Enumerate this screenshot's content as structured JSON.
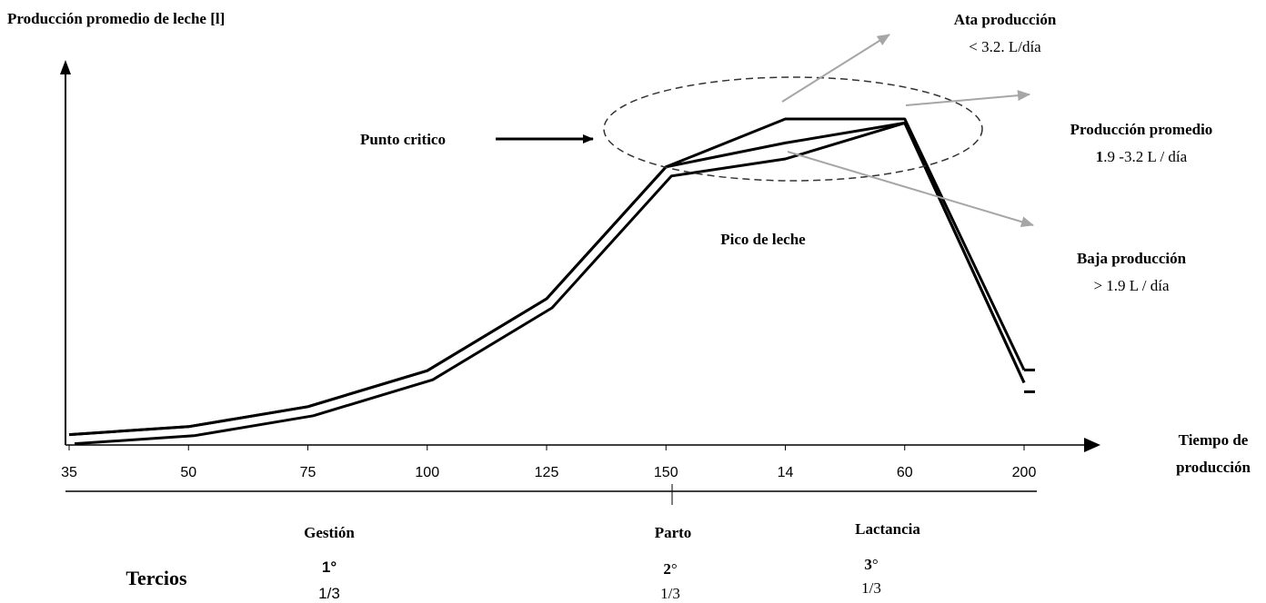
{
  "chart_data": {
    "type": "line",
    "ylabel": "Producción promedio de leche [l]",
    "xlabel_line1": "Tiempo de",
    "xlabel_line2": "producción",
    "x_ticks": [
      "35",
      "50",
      "75",
      "100",
      "125",
      "150",
      "14",
      "60",
      "200"
    ],
    "series": [
      {
        "values": [
          1,
          3,
          8,
          17,
          35,
          68,
          80,
          80,
          14
        ]
      },
      {
        "values": [
          1,
          3,
          8,
          17,
          35,
          68,
          70,
          79,
          14
        ]
      },
      {
        "values": [
          1,
          3,
          8,
          17,
          35,
          68,
          74,
          79,
          14
        ]
      }
    ],
    "annotations": {
      "critical_point": "Punto critico",
      "milk_peak": "Pico de leche",
      "high_title": "Ata producción",
      "high_range": "< 3.2. L/día",
      "avg_title": "Producción promedio",
      "avg_bold": "1",
      "avg_range": ".9 -3.2 L / día",
      "low_title": "Baja producción",
      "low_range": "> 1.9 L / día"
    },
    "phases": {
      "tercios_label": "Tercios",
      "gestation": "Gestión",
      "birth": "Parto",
      "lactation": "Lactancia",
      "first": "1°",
      "second_num": "2",
      "second_deg": "°",
      "third_num": "3",
      "third_deg": "°",
      "fraction": "1/3"
    }
  }
}
